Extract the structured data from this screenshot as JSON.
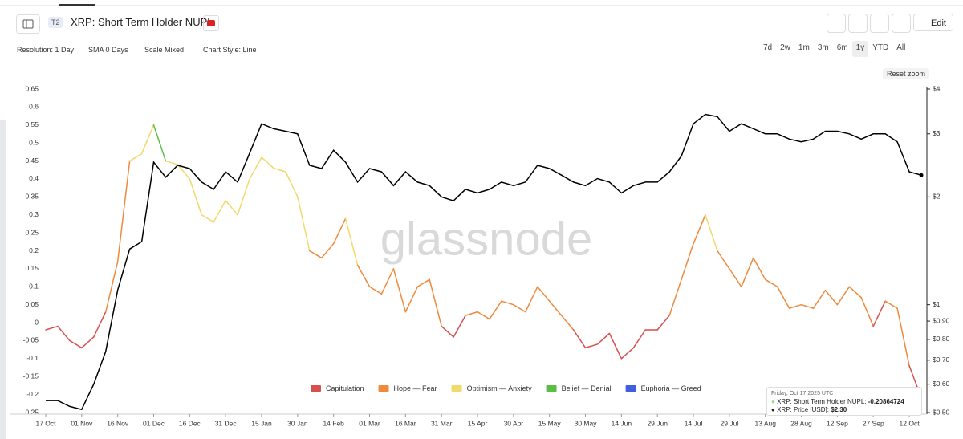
{
  "header": {
    "badge": "T2",
    "title": "XRP: Short Term Holder NUPL",
    "edit": "Edit"
  },
  "toolbar": {
    "resolution": "Resolution: 1 Day",
    "sma": "SMA 0 Days",
    "scale": "Scale Mixed",
    "style": "Chart Style: Line",
    "ranges": [
      "7d",
      "2w",
      "1m",
      "3m",
      "6m",
      "1y",
      "YTD",
      "All"
    ],
    "reset_zoom": "Reset zoom"
  },
  "watermark": "glassnode",
  "tooltip": {
    "date": "Friday, Oct 17 2025 UTC",
    "nupl_label": "XRP: Short Term Holder NUPL:",
    "price_label": "XRP: Price [USD]:",
    "price": "$2.30"
  },
  "chart_data": {
    "type": "line",
    "categories": [
      "17 Oct",
      null,
      null,
      "01 Nov",
      null,
      null,
      "16 Nov",
      null,
      null,
      "01 Dec",
      null,
      null,
      "16 Dec",
      null,
      null,
      "31 Dec",
      null,
      null,
      "15 Jan",
      null,
      null,
      "30 Jan",
      null,
      null,
      "14 Feb",
      null,
      null,
      "01 Mar",
      null,
      null,
      "16 Mar",
      null,
      null,
      "31 Mar",
      null,
      null,
      "15 Apr",
      null,
      null,
      "30 Apr",
      null,
      null,
      "15 May",
      null,
      null,
      "30 May",
      null,
      null,
      "14 Jun",
      null,
      null,
      "29 Jun",
      null,
      null,
      "14 Jul",
      null,
      null,
      "29 Jul",
      null,
      null,
      "13 Aug",
      null,
      null,
      "28 Aug",
      null,
      null,
      "12 Sep",
      null,
      null,
      "27 Sep",
      null,
      null,
      "12 Oct",
      null
    ],
    "series": [
      {
        "name": "XRP: Short Term Holder NUPL",
        "values": [
          -0.02,
          -0.01,
          -0.05,
          -0.07,
          -0.04,
          0.03,
          0.17,
          0.45,
          0.47,
          0.55,
          0.45,
          0.44,
          0.4,
          0.3,
          0.28,
          0.34,
          0.3,
          0.4,
          0.46,
          0.43,
          0.42,
          0.35,
          0.2,
          0.18,
          0.22,
          0.29,
          0.16,
          0.1,
          0.08,
          0.15,
          0.03,
          0.1,
          0.12,
          -0.01,
          -0.04,
          0.02,
          0.03,
          0.01,
          0.06,
          0.05,
          0.03,
          0.1,
          0.06,
          0.02,
          -0.02,
          -0.07,
          -0.06,
          -0.03,
          -0.1,
          -0.07,
          -0.02,
          -0.02,
          0.02,
          0.12,
          0.22,
          0.3,
          0.2,
          0.15,
          0.1,
          0.18,
          0.12,
          0.1,
          0.04,
          0.05,
          0.04,
          0.09,
          0.05,
          0.1,
          0.07,
          -0.01,
          0.06,
          0.04,
          -0.12,
          -0.20864724
        ],
        "colors": [
          "#d94f4f",
          "#d94f4f",
          "#d94f4f",
          "#d94f4f",
          "#d94f4f",
          "#ee8a3c",
          "#ee8a3c",
          "#f1d96a",
          "#f1d96a",
          "#5cbd46",
          "#f1d96a",
          "#f1d96a",
          "#f1d96a",
          "#f1d96a",
          "#f1d96a",
          "#f1d96a",
          "#f1d96a",
          "#f1d96a",
          "#f1d96a",
          "#f1d96a",
          "#f1d96a",
          "#f1d96a",
          "#ee8a3c",
          "#ee8a3c",
          "#ee8a3c",
          "#f1d96a",
          "#ee8a3c",
          "#ee8a3c",
          "#ee8a3c",
          "#ee8a3c",
          "#ee8a3c",
          "#ee8a3c",
          "#ee8a3c",
          "#d94f4f",
          "#d94f4f",
          "#ee8a3c",
          "#ee8a3c",
          "#ee8a3c",
          "#ee8a3c",
          "#ee8a3c",
          "#ee8a3c",
          "#ee8a3c",
          "#ee8a3c",
          "#ee8a3c",
          "#d94f4f",
          "#d94f4f",
          "#d94f4f",
          "#d94f4f",
          "#d94f4f",
          "#d94f4f",
          "#d94f4f",
          "#d94f4f",
          "#ee8a3c",
          "#ee8a3c",
          "#ee8a3c",
          "#f1d96a",
          "#ee8a3c",
          "#ee8a3c",
          "#ee8a3c",
          "#ee8a3c",
          "#ee8a3c",
          "#ee8a3c",
          "#ee8a3c",
          "#ee8a3c",
          "#ee8a3c",
          "#ee8a3c",
          "#ee8a3c",
          "#ee8a3c",
          "#ee8a3c",
          "#d94f4f",
          "#ee8a3c",
          "#ee8a3c",
          "#d94f4f",
          "#d94f4f"
        ]
      },
      {
        "name": "XRP: Price [USD]",
        "color": "#000000",
        "axis": "y2",
        "values": [
          0.54,
          0.54,
          0.52,
          0.51,
          0.6,
          0.74,
          1.1,
          1.43,
          1.5,
          2.5,
          2.27,
          2.45,
          2.4,
          2.2,
          2.1,
          2.35,
          2.2,
          2.65,
          3.2,
          3.1,
          3.05,
          3.0,
          2.45,
          2.4,
          2.7,
          2.5,
          2.2,
          2.4,
          2.35,
          2.15,
          2.35,
          2.2,
          2.15,
          2.0,
          1.95,
          2.1,
          2.05,
          2.1,
          2.2,
          2.15,
          2.2,
          2.45,
          2.4,
          2.3,
          2.2,
          2.15,
          2.25,
          2.2,
          2.05,
          2.15,
          2.2,
          2.2,
          2.35,
          2.6,
          3.2,
          3.4,
          3.35,
          3.05,
          3.2,
          3.1,
          3.0,
          3.0,
          2.9,
          2.85,
          2.9,
          3.05,
          3.05,
          3.0,
          2.9,
          3.0,
          3.0,
          2.85,
          2.35,
          2.3
        ]
      }
    ],
    "legend": [
      {
        "name": "Capitulation",
        "color": "#d94f4f"
      },
      {
        "name": "Hope — Fear",
        "color": "#ee8a3c"
      },
      {
        "name": "Optimism — Anxiety",
        "color": "#f1d96a"
      },
      {
        "name": "Belief — Denial",
        "color": "#5cbd46"
      },
      {
        "name": "Euphoria — Greed",
        "color": "#3f5fe0"
      }
    ],
    "ylim": [
      -0.25,
      0.65
    ],
    "yticks": [
      -0.25,
      -0.2,
      -0.15,
      -0.1,
      -0.05,
      0,
      0.05,
      0.1,
      0.15,
      0.2,
      0.25,
      0.3,
      0.35,
      0.4,
      0.45,
      0.5,
      0.55,
      0.6,
      0.65
    ],
    "y2lim": [
      0.5,
      4
    ],
    "y2log": true,
    "y2ticks": [
      {
        "value": 4,
        "label": "$4"
      },
      {
        "value": 3,
        "label": "$3"
      },
      {
        "value": 2,
        "label": "$2"
      },
      {
        "value": 1,
        "label": "$1"
      },
      {
        "value": 0.9,
        "label": "$0.90"
      },
      {
        "value": 0.8,
        "label": "$0.80"
      },
      {
        "value": 0.7,
        "label": "$0.70"
      },
      {
        "value": 0.6,
        "label": "$0.60"
      },
      {
        "value": 0.5,
        "label": "$0.50"
      }
    ],
    "grid": false
  }
}
